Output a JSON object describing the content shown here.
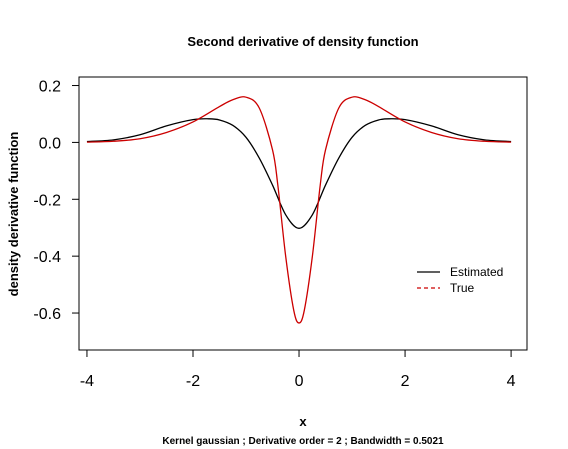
{
  "chart_data": {
    "type": "line",
    "title": "Second derivative of density function",
    "xlabel": "x",
    "ylabel": "density derivative function",
    "subtitle": "Kernel gaussian ; Derivative order =  2 ; Bandwidth =  0.5021",
    "xlim": [
      -4.15,
      4.3
    ],
    "ylim": [
      -0.73,
      0.23
    ],
    "x_ticks": [
      -4,
      -2,
      0,
      2,
      4
    ],
    "x_tick_labels": [
      "-4",
      "-2",
      "0",
      "2",
      "4"
    ],
    "y_ticks": [
      0.2,
      0.0,
      -0.2,
      -0.4,
      -0.6
    ],
    "y_tick_labels": [
      "0.2",
      "0.0",
      "-0.2",
      "-0.4",
      "-0.6"
    ],
    "grid": false,
    "legend_position": "right",
    "series": [
      {
        "name": "Estimated",
        "color": "#000000",
        "style": "solid",
        "x": [
          -4.0,
          -3.5,
          -3.0,
          -2.5,
          -2.0,
          -1.7,
          -1.5,
          -1.25,
          -1.0,
          -0.75,
          -0.5,
          -0.25,
          0.0,
          0.25,
          0.5,
          0.75,
          1.0,
          1.25,
          1.5,
          1.7,
          2.0,
          2.5,
          3.0,
          3.5,
          4.0
        ],
        "y": [
          0.003,
          0.009,
          0.027,
          0.058,
          0.08,
          0.083,
          0.079,
          0.06,
          0.018,
          -0.055,
          -0.15,
          -0.255,
          -0.302,
          -0.255,
          -0.15,
          -0.055,
          0.018,
          0.06,
          0.079,
          0.083,
          0.08,
          0.058,
          0.027,
          0.009,
          0.003
        ]
      },
      {
        "name": "True",
        "color": "#cc0000",
        "style": "dashed",
        "x": [
          -4.0,
          -3.5,
          -3.0,
          -2.5,
          -2.0,
          -1.5,
          -1.25,
          -1.0,
          -0.75,
          -0.5,
          -0.4,
          -0.25,
          -0.1,
          0.0,
          0.1,
          0.25,
          0.4,
          0.5,
          0.75,
          1.0,
          1.25,
          1.5,
          2.0,
          2.5,
          3.0,
          3.5,
          4.0
        ],
        "y": [
          0.001,
          0.004,
          0.013,
          0.035,
          0.072,
          0.126,
          0.15,
          0.159,
          0.121,
          -0.026,
          -0.15,
          -0.403,
          -0.59,
          -0.635,
          -0.59,
          -0.403,
          -0.15,
          -0.026,
          0.121,
          0.159,
          0.15,
          0.126,
          0.072,
          0.035,
          0.013,
          0.004,
          0.001
        ]
      }
    ]
  }
}
